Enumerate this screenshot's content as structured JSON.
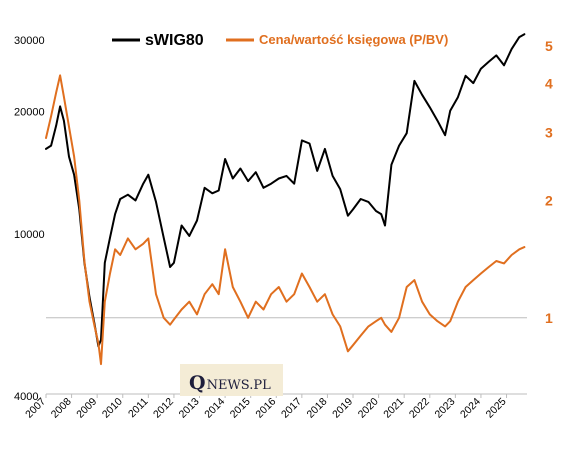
{
  "chart_data": {
    "type": "line",
    "title": "",
    "x_range": [
      2007.0,
      2025.8
    ],
    "x_tick_labels": [
      "2007",
      "2008",
      "2009",
      "2010",
      "2011",
      "2012",
      "2013",
      "2014",
      "2015",
      "2016",
      "2017",
      "2018",
      "2019",
      "2020",
      "2021",
      "2022",
      "2023",
      "2024",
      "2025"
    ],
    "left_axis": {
      "scale": "log",
      "range": [
        4000,
        30000
      ],
      "tick_labels": [
        "4000",
        "10000",
        "20000",
        "30000"
      ]
    },
    "right_axis": {
      "scale": "log",
      "range": [
        0.7,
        5.0
      ],
      "tick_labels": [
        "1",
        "2",
        "3",
        "4",
        "5"
      ]
    },
    "reference_line": {
      "axis": "right",
      "value": 1.0
    },
    "legend_placement": "top",
    "series": [
      {
        "name": "sWIG80",
        "axis": "left",
        "color": "#000000",
        "x": [
          2007.0,
          2007.2,
          2007.4,
          2007.55,
          2007.7,
          2007.9,
          2008.1,
          2008.3,
          2008.5,
          2008.7,
          2008.9,
          2009.05,
          2009.15,
          2009.3,
          2009.5,
          2009.7,
          2009.9,
          2010.2,
          2010.5,
          2010.8,
          2011.0,
          2011.3,
          2011.6,
          2011.85,
          2012.0,
          2012.3,
          2012.6,
          2012.9,
          2013.2,
          2013.5,
          2013.75,
          2014.0,
          2014.3,
          2014.6,
          2014.9,
          2015.2,
          2015.5,
          2015.8,
          2016.1,
          2016.4,
          2016.7,
          2017.0,
          2017.3,
          2017.6,
          2017.9,
          2018.2,
          2018.5,
          2018.8,
          2019.0,
          2019.3,
          2019.6,
          2019.9,
          2020.1,
          2020.25,
          2020.5,
          2020.8,
          2021.1,
          2021.4,
          2021.7,
          2022.0,
          2022.3,
          2022.6,
          2022.8,
          2023.1,
          2023.4,
          2023.7,
          2024.0,
          2024.3,
          2024.6,
          2024.9,
          2025.2,
          2025.5,
          2025.7
        ],
        "y": [
          16200,
          16500,
          18500,
          20600,
          19000,
          15500,
          14000,
          11500,
          8500,
          7000,
          6000,
          5300,
          5500,
          8500,
          9800,
          11200,
          12200,
          12500,
          12100,
          13300,
          14000,
          12000,
          9800,
          8300,
          8500,
          10500,
          9900,
          10800,
          13000,
          12600,
          12800,
          15300,
          13700,
          14500,
          13500,
          14200,
          13000,
          13300,
          13700,
          13900,
          13300,
          17000,
          16700,
          14300,
          16200,
          13900,
          12900,
          11100,
          11500,
          12200,
          12000,
          11400,
          11200,
          10500,
          14800,
          16500,
          17700,
          23800,
          22000,
          20500,
          19000,
          17500,
          20100,
          21700,
          24500,
          23500,
          25500,
          26500,
          27500,
          26000,
          28500,
          30500,
          31000
        ]
      },
      {
        "name": "Cena/wartość księgowa (P/BV)",
        "axis": "right",
        "color": "#e06f1f",
        "x": [
          2007.0,
          2007.2,
          2007.4,
          2007.55,
          2007.7,
          2007.9,
          2008.1,
          2008.3,
          2008.5,
          2008.7,
          2008.9,
          2009.05,
          2009.15,
          2009.3,
          2009.5,
          2009.7,
          2009.9,
          2010.2,
          2010.5,
          2010.8,
          2011.0,
          2011.3,
          2011.6,
          2011.85,
          2012.0,
          2012.3,
          2012.6,
          2012.9,
          2013.2,
          2013.5,
          2013.75,
          2014.0,
          2014.3,
          2014.6,
          2014.9,
          2015.2,
          2015.5,
          2015.8,
          2016.1,
          2016.4,
          2016.7,
          2017.0,
          2017.3,
          2017.6,
          2017.9,
          2018.2,
          2018.5,
          2018.8,
          2019.0,
          2019.3,
          2019.6,
          2019.9,
          2020.1,
          2020.25,
          2020.5,
          2020.8,
          2021.1,
          2021.4,
          2021.7,
          2022.0,
          2022.3,
          2022.6,
          2022.8,
          2023.1,
          2023.4,
          2023.7,
          2024.0,
          2024.3,
          2024.6,
          2024.9,
          2025.2,
          2025.5,
          2025.7
        ],
        "y": [
          2.9,
          3.3,
          3.8,
          4.2,
          3.7,
          3.1,
          2.6,
          2.0,
          1.4,
          1.1,
          0.95,
          0.86,
          0.76,
          1.1,
          1.3,
          1.5,
          1.45,
          1.6,
          1.5,
          1.55,
          1.6,
          1.15,
          1.0,
          0.96,
          0.99,
          1.05,
          1.1,
          1.02,
          1.15,
          1.22,
          1.15,
          1.5,
          1.2,
          1.1,
          1.0,
          1.1,
          1.05,
          1.15,
          1.2,
          1.1,
          1.15,
          1.3,
          1.2,
          1.1,
          1.15,
          1.02,
          0.95,
          0.82,
          0.85,
          0.9,
          0.95,
          0.98,
          1.0,
          0.96,
          0.92,
          1.0,
          1.2,
          1.25,
          1.1,
          1.02,
          0.98,
          0.95,
          0.98,
          1.1,
          1.2,
          1.25,
          1.3,
          1.35,
          1.4,
          1.38,
          1.45,
          1.5,
          1.52
        ]
      }
    ]
  },
  "watermark": {
    "initial": "Q",
    "rest": "NEWS.PL"
  }
}
